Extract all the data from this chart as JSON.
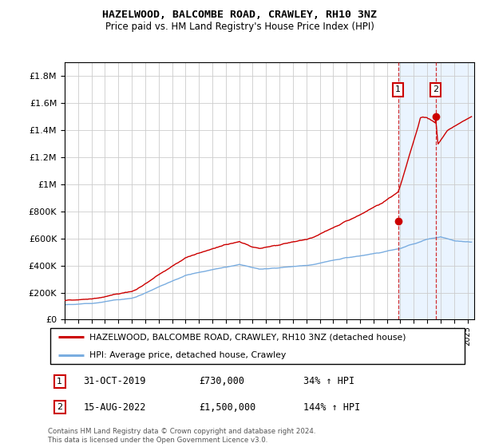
{
  "title": "HAZELWOOD, BALCOMBE ROAD, CRAWLEY, RH10 3NZ",
  "subtitle": "Price paid vs. HM Land Registry's House Price Index (HPI)",
  "legend_label_red": "HAZELWOOD, BALCOMBE ROAD, CRAWLEY, RH10 3NZ (detached house)",
  "legend_label_blue": "HPI: Average price, detached house, Crawley",
  "annotation1_date": "31-OCT-2019",
  "annotation1_price": "£730,000",
  "annotation1_hpi": "34% ↑ HPI",
  "annotation2_date": "15-AUG-2022",
  "annotation2_price": "£1,500,000",
  "annotation2_hpi": "144% ↑ HPI",
  "footer": "Contains HM Land Registry data © Crown copyright and database right 2024.\nThis data is licensed under the Open Government Licence v3.0.",
  "ylim": [
    0,
    1900000
  ],
  "xlim_start": 1995.0,
  "xlim_end": 2025.5,
  "marker1_x": 2019.83,
  "marker1_y": 730000,
  "marker2_x": 2022.62,
  "marker2_y": 1500000,
  "red_color": "#cc0000",
  "blue_color": "#7aade0",
  "background_shading_color": "#ddeeff",
  "grid_color": "#cccccc",
  "annotation_box_color": "#cc0000"
}
